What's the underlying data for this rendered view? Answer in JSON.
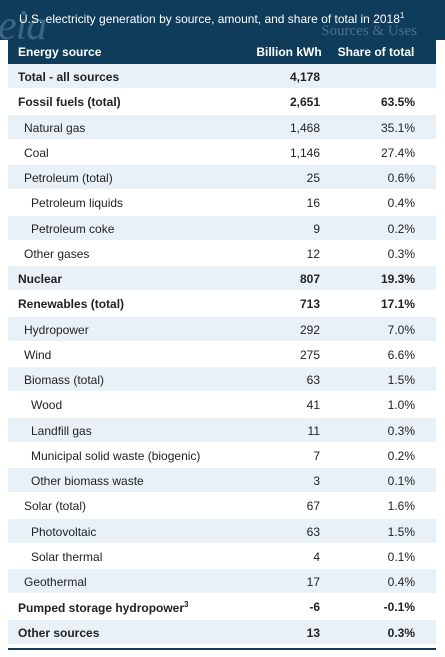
{
  "logo": {
    "text": "eia"
  },
  "watermark_tagline": "Sources & Uses",
  "title": {
    "text": "U.S. electricity generation by source, amount, and share of total in 2018",
    "footnote": "1"
  },
  "columns": {
    "source": "Energy source",
    "kwh": "Billion kWh",
    "share": "Share of total"
  },
  "rows": [
    {
      "name": "Total - all sources",
      "kwh": "4,178",
      "share": "",
      "level": 0,
      "bold": true,
      "sup": ""
    },
    {
      "name": "Fossil fuels (total)",
      "kwh": "2,651",
      "share": "63.5%",
      "level": 0,
      "bold": true,
      "sup": ""
    },
    {
      "name": "Natural gas",
      "kwh": "1,468",
      "share": "35.1%",
      "level": 1,
      "bold": false,
      "sup": ""
    },
    {
      "name": "Coal",
      "kwh": "1,146",
      "share": "27.4%",
      "level": 1,
      "bold": false,
      "sup": ""
    },
    {
      "name": "Petroleum (total)",
      "kwh": "25",
      "share": "0.6%",
      "level": 1,
      "bold": false,
      "sup": ""
    },
    {
      "name": "Petroleum liquids",
      "kwh": "16",
      "share": "0.4%",
      "level": 2,
      "bold": false,
      "sup": ""
    },
    {
      "name": "Petroleum coke",
      "kwh": "9",
      "share": "0.2%",
      "level": 2,
      "bold": false,
      "sup": ""
    },
    {
      "name": "Other gases",
      "kwh": "12",
      "share": "0.3%",
      "level": 1,
      "bold": false,
      "sup": ""
    },
    {
      "name": "Nuclear",
      "kwh": "807",
      "share": "19.3%",
      "level": 0,
      "bold": true,
      "sup": ""
    },
    {
      "name": "Renewables (total)",
      "kwh": "713",
      "share": "17.1%",
      "level": 0,
      "bold": true,
      "sup": ""
    },
    {
      "name": "Hydropower",
      "kwh": "292",
      "share": "7.0%",
      "level": 1,
      "bold": false,
      "sup": ""
    },
    {
      "name": "Wind",
      "kwh": "275",
      "share": "6.6%",
      "level": 1,
      "bold": false,
      "sup": ""
    },
    {
      "name": "Biomass (total)",
      "kwh": "63",
      "share": "1.5%",
      "level": 1,
      "bold": false,
      "sup": ""
    },
    {
      "name": "Wood",
      "kwh": "41",
      "share": "1.0%",
      "level": 2,
      "bold": false,
      "sup": ""
    },
    {
      "name": "Landfill gas",
      "kwh": "11",
      "share": "0.3%",
      "level": 2,
      "bold": false,
      "sup": ""
    },
    {
      "name": "Municipal solid waste (biogenic)",
      "kwh": "7",
      "share": "0.2%",
      "level": 2,
      "bold": false,
      "sup": ""
    },
    {
      "name": "Other biomass waste",
      "kwh": "3",
      "share": "0.1%",
      "level": 2,
      "bold": false,
      "sup": ""
    },
    {
      "name": "Solar (total)",
      "kwh": "67",
      "share": "1.6%",
      "level": 1,
      "bold": false,
      "sup": ""
    },
    {
      "name": "Photovoltaic",
      "kwh": "63",
      "share": "1.5%",
      "level": 2,
      "bold": false,
      "sup": ""
    },
    {
      "name": "Solar thermal",
      "kwh": "4",
      "share": "0.1%",
      "level": 2,
      "bold": false,
      "sup": ""
    },
    {
      "name": "Geothermal",
      "kwh": "17",
      "share": "0.4%",
      "level": 1,
      "bold": false,
      "sup": ""
    },
    {
      "name": "Pumped storage hydropower",
      "kwh": "-6",
      "share": "-0.1%",
      "level": 0,
      "bold": true,
      "sup": "3"
    },
    {
      "name": "Other sources",
      "kwh": "13",
      "share": "0.3%",
      "level": 0,
      "bold": true,
      "sup": ""
    }
  ],
  "colors": {
    "header_bg": "#0f3c5a",
    "alt_row_bg": "#e9f1f8"
  }
}
